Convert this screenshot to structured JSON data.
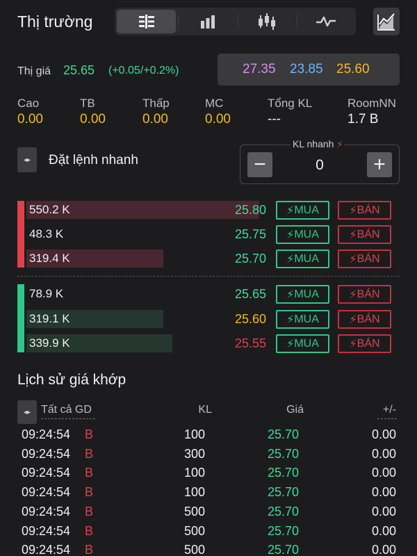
{
  "header": {
    "title": "Thị trường",
    "tabs": [
      {
        "icon": "order-book-icon",
        "active": true
      },
      {
        "icon": "bar-chart-icon",
        "active": false
      },
      {
        "icon": "candlestick-icon",
        "active": false
      },
      {
        "icon": "line-pulse-icon",
        "active": false
      }
    ],
    "trend_icon": "trend-chart-icon"
  },
  "quote": {
    "label": "Thị giá",
    "price": "25.65",
    "change": "(+0.05/+0.2%)",
    "ceiling": "27.35",
    "floor": "23.85",
    "reference": "25.60"
  },
  "stats": [
    {
      "label": "Cao",
      "value": "0.00"
    },
    {
      "label": "TB",
      "value": "0.00"
    },
    {
      "label": "Thấp",
      "value": "0.00"
    },
    {
      "label": "MC",
      "value": "0.00"
    },
    {
      "label": "Tổng KL",
      "value": "---"
    },
    {
      "label": "RoomNN",
      "value": "1.7 B"
    }
  ],
  "quick_order": {
    "label": "Đặt lệnh nhanh",
    "kl_label": "KL nhanh",
    "kl_value": "0",
    "minus": "−",
    "plus": "+"
  },
  "order_book": {
    "buy_label": "MUA",
    "sell_label": "BÁN",
    "asks": [
      {
        "volume": "550.2 K",
        "price": "25.80",
        "fill": 0.97,
        "price_color": "#3ddc97"
      },
      {
        "volume": "48.3 K",
        "price": "25.75",
        "fill": 0.0,
        "price_color": "#3ddc97"
      },
      {
        "volume": "319.4 K",
        "price": "25.70",
        "fill": 0.57,
        "price_color": "#3ddc97"
      }
    ],
    "bids": [
      {
        "volume": "78.9 K",
        "price": "25.65",
        "fill": 0.0,
        "price_color": "#3ddc97"
      },
      {
        "volume": "319.1 K",
        "price": "25.60",
        "fill": 0.57,
        "price_color": "#f5b82e"
      },
      {
        "volume": "339.9 K",
        "price": "25.55",
        "fill": 0.61,
        "price_color": "#e0404a"
      }
    ]
  },
  "history": {
    "title": "Lịch sử giá khớp",
    "filter": "Tất cả GD",
    "col_kl": "KL",
    "col_price": "Giá",
    "col_change": "+/-",
    "rows": [
      {
        "time": "09:24:54",
        "side": "B",
        "kl": "100",
        "price": "25.70",
        "change": "0.00"
      },
      {
        "time": "09:24:54",
        "side": "B",
        "kl": "300",
        "price": "25.70",
        "change": "0.00"
      },
      {
        "time": "09:24:54",
        "side": "B",
        "kl": "100",
        "price": "25.70",
        "change": "0.00"
      },
      {
        "time": "09:24:54",
        "side": "B",
        "kl": "100",
        "price": "25.70",
        "change": "0.00"
      },
      {
        "time": "09:24:54",
        "side": "B",
        "kl": "500",
        "price": "25.70",
        "change": "0.00"
      },
      {
        "time": "09:24:54",
        "side": "B",
        "kl": "500",
        "price": "25.70",
        "change": "0.00"
      },
      {
        "time": "09:24:54",
        "side": "B",
        "kl": "500",
        "price": "25.70",
        "change": "0.00"
      }
    ]
  },
  "colors": {
    "up": "#3ddc97",
    "ref": "#f5b82e",
    "down": "#e0404a",
    "ceiling": "#d98cf0",
    "floor": "#6fb6ff",
    "ask_bar": "#4a2730",
    "bid_bar": "#24382f"
  }
}
